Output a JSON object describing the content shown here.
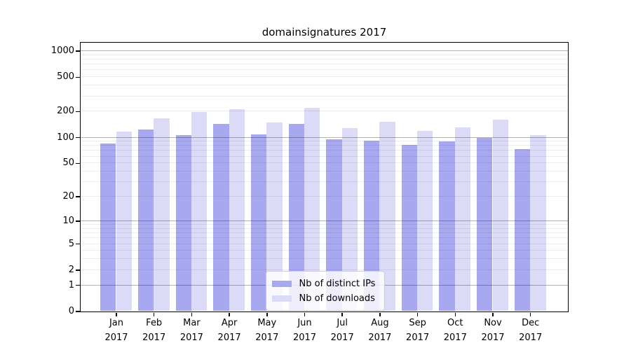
{
  "chart_data": {
    "type": "bar",
    "title": "domainsignatures 2017",
    "categories": [
      "Jan 2017",
      "Feb 2017",
      "Mar 2017",
      "Apr 2017",
      "May 2017",
      "Jun 2017",
      "Jul 2017",
      "Aug 2017",
      "Sep 2017",
      "Oct 2017",
      "Nov 2017",
      "Dec 2017"
    ],
    "series": [
      {
        "name": "Nb of distinct IPs",
        "color": "#a8a8f0",
        "values": [
          85,
          122,
          105,
          142,
          108,
          142,
          95,
          91,
          81,
          89,
          98,
          72
        ]
      },
      {
        "name": "Nb of downloads",
        "color": "#dbdbf8",
        "values": [
          116,
          165,
          195,
          210,
          148,
          220,
          128,
          151,
          119,
          130,
          160,
          106
        ]
      }
    ],
    "xlabel": "",
    "ylabel": "",
    "yscale": "log1p",
    "ylim": [
      0,
      1250
    ],
    "yticks": [
      0,
      1,
      2,
      5,
      10,
      20,
      50,
      100,
      200,
      500,
      1000
    ],
    "grid": "horizontal, major and minor, drawn over bars",
    "legend_position": "lower center inside plot"
  },
  "colors": {
    "bar_distinct_ips": "#a8a8f0",
    "bar_downloads": "#dbdbf8",
    "major_grid": "#b0b0b0",
    "minor_grid": "#ebebeb",
    "spine": "#000000",
    "legend_border": "#cccccc"
  }
}
